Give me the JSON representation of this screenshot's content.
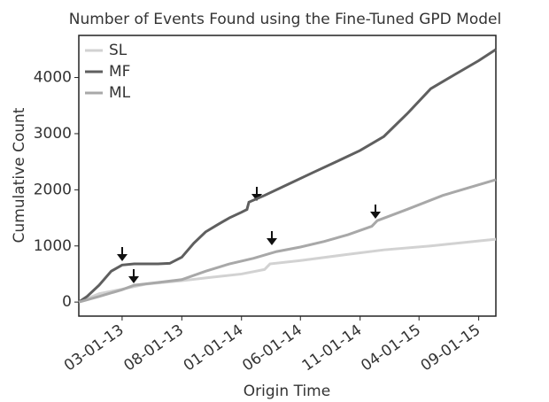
{
  "chart_data": {
    "type": "line",
    "title": "Number of Events Found using the Fine-Tuned GPD Model",
    "xlabel": "Origin Time",
    "ylabel": "Cumulative Count",
    "xlim": [
      "2012-11-10",
      "2015-10-15"
    ],
    "xticks": [
      {
        "value": "2013-03-01",
        "label": "03-01-13"
      },
      {
        "value": "2013-08-01",
        "label": "08-01-13"
      },
      {
        "value": "2014-01-01",
        "label": "01-01-14"
      },
      {
        "value": "2014-06-01",
        "label": "06-01-14"
      },
      {
        "value": "2014-11-01",
        "label": "11-01-14"
      },
      {
        "value": "2015-04-01",
        "label": "04-01-15"
      },
      {
        "value": "2015-09-01",
        "label": "09-01-15"
      }
    ],
    "ylim": [
      -250,
      4750
    ],
    "yticks": [
      0,
      1000,
      2000,
      3000,
      4000
    ],
    "legend": "upper left",
    "series": [
      {
        "name": "SL",
        "color": "#d2d2d2",
        "x": [
          "2012-11-10",
          "2013-01-01",
          "2013-03-01",
          "2013-05-01",
          "2013-08-01",
          "2013-10-01",
          "2014-01-01",
          "2014-03-01",
          "2014-03-15",
          "2014-06-01",
          "2014-10-01",
          "2015-01-01",
          "2015-05-01",
          "2015-10-15"
        ],
        "values": [
          0,
          150,
          230,
          320,
          380,
          430,
          500,
          580,
          680,
          740,
          850,
          930,
          1000,
          1120
        ]
      },
      {
        "name": "MF",
        "color": "#5f5f5f",
        "x": [
          "2012-11-10",
          "2012-12-01",
          "2013-01-01",
          "2013-02-01",
          "2013-03-01",
          "2013-04-01",
          "2013-05-01",
          "2013-06-01",
          "2013-07-01",
          "2013-08-01",
          "2013-09-01",
          "2013-10-01",
          "2013-11-01",
          "2013-12-01",
          "2014-01-01",
          "2014-01-15",
          "2014-01-20",
          "2014-03-01",
          "2014-05-01",
          "2014-07-01",
          "2014-09-01",
          "2014-11-01",
          "2015-01-01",
          "2015-03-01",
          "2015-05-01",
          "2015-07-01",
          "2015-09-01",
          "2015-10-15"
        ],
        "values": [
          0,
          100,
          300,
          550,
          660,
          680,
          680,
          680,
          690,
          800,
          1050,
          1250,
          1380,
          1500,
          1600,
          1650,
          1780,
          1900,
          2100,
          2300,
          2500,
          2700,
          2950,
          3350,
          3800,
          4050,
          4300,
          4500
        ]
      },
      {
        "name": "ML",
        "color": "#a8a8a8",
        "x": [
          "2012-11-10",
          "2013-01-01",
          "2013-03-01",
          "2013-04-01",
          "2013-06-01",
          "2013-08-01",
          "2013-10-01",
          "2013-12-01",
          "2014-02-01",
          "2014-04-01",
          "2014-06-01",
          "2014-08-01",
          "2014-10-01",
          "2014-12-01",
          "2014-12-15",
          "2015-03-01",
          "2015-06-01",
          "2015-10-15"
        ],
        "values": [
          0,
          100,
          220,
          300,
          350,
          400,
          550,
          680,
          780,
          900,
          980,
          1080,
          1200,
          1350,
          1450,
          1650,
          1900,
          2180
        ]
      }
    ]
  }
}
